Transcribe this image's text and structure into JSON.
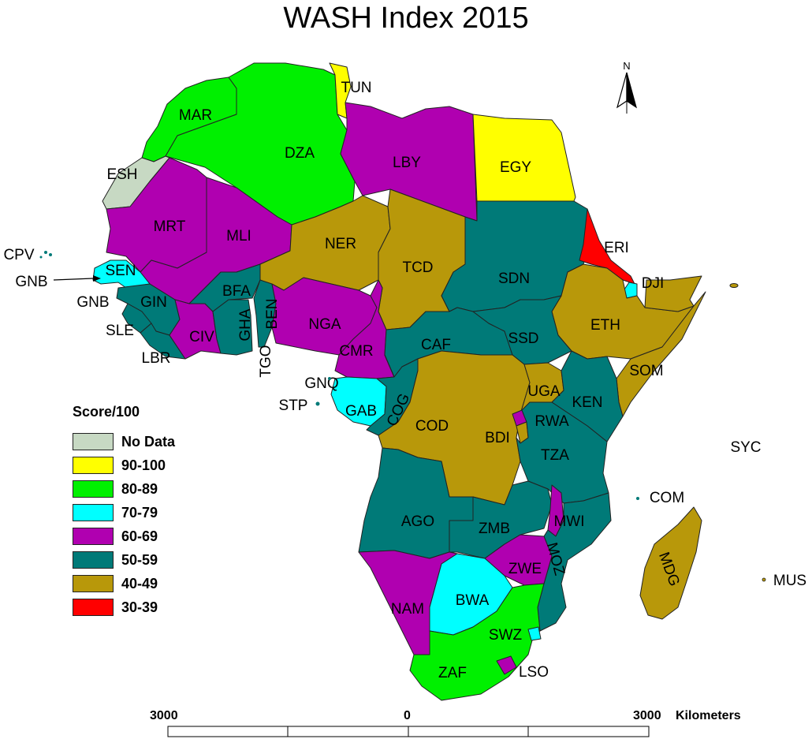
{
  "title": "WASH Index 2015",
  "legend": {
    "title": "Score/100",
    "items": [
      {
        "label": "No Data",
        "color": "#c7d9c3"
      },
      {
        "label": "90-100",
        "color": "#ffff00"
      },
      {
        "label": "80-89",
        "color": "#00f000"
      },
      {
        "label": "70-79",
        "color": "#00ffff"
      },
      {
        "label": "60-69",
        "color": "#b000b0"
      },
      {
        "label": "50-59",
        "color": "#007a78"
      },
      {
        "label": "40-49",
        "color": "#b8980a"
      },
      {
        "label": "30-39",
        "color": "#ff0000"
      }
    ]
  },
  "north_arrow": {
    "label": "N"
  },
  "scale_bar": {
    "left": "3000",
    "middle": "0",
    "right": "3000",
    "unit": "Kilometers"
  },
  "countries": {
    "MAR": "80-89",
    "DZA": "80-89",
    "TUN": "90-100",
    "LBY": "60-69",
    "EGY": "90-100",
    "ESH": "No Data",
    "MRT": "60-69",
    "MLI": "60-69",
    "NER": "40-49",
    "TCD": "40-49",
    "SDN": "50-59",
    "ERI": "30-39",
    "DJI": "70-79",
    "ETH": "40-49",
    "SOM": "40-49",
    "SEN": "70-79",
    "GIN": "50-59",
    "SLE": "50-59",
    "LBR": "50-59",
    "CIV": "60-69",
    "BFA": "50-59",
    "GHA": "50-59",
    "BEN": "50-59",
    "NGA": "60-69",
    "CMR": "60-69",
    "CAF": "50-59",
    "SSD": "50-59",
    "GAB": "70-79",
    "COG": "50-59",
    "COD": "40-49",
    "UGA": "40-49",
    "KEN": "50-59",
    "RWA": "60-69",
    "BDI": "40-49",
    "TZA": "50-59",
    "AGO": "50-59",
    "ZMB": "50-59",
    "MWI": "60-69",
    "MOZ": "50-59",
    "ZWE": "60-69",
    "NAM": "60-69",
    "BWA": "70-79",
    "ZAF": "80-89",
    "SWZ": "70-79",
    "LSO": "60-69",
    "MDG": "40-49"
  },
  "labels": [
    "TUN",
    "MAR",
    "DZA",
    "LBY",
    "EGY",
    "ESH",
    "MRT",
    "MLI",
    "NER",
    "TCD",
    "ERI",
    "SDN",
    "DJI",
    "CPV",
    "GNB",
    "SEN",
    "GNB",
    "BFA",
    "GIN",
    "SLE",
    "LBR",
    "CIV",
    "GHA",
    "BEN",
    "TGO",
    "NGA",
    "CMR",
    "CAF",
    "SSD",
    "ETH",
    "SOM",
    "GNQ",
    "STP",
    "GAB",
    "COG",
    "COD",
    "UGA",
    "KEN",
    "RWA",
    "BDI",
    "TZA",
    "SYC",
    "COM",
    "AGO",
    "ZMB",
    "MWI",
    "MOZ",
    "ZWE",
    "MDG",
    "MUS",
    "NAM",
    "BWA",
    "SWZ",
    "ZAF",
    "LSO"
  ]
}
